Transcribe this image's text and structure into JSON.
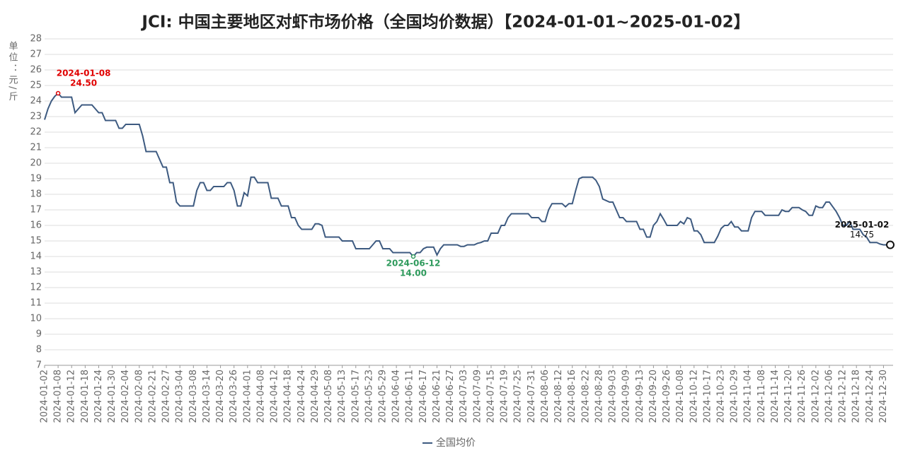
{
  "chart_data": {
    "type": "line",
    "title": "JCI: 中国主要地区对虾市场价格（全国均价数据）【2024-01-01~2025-01-02】",
    "y_label": "单位：元/斤",
    "ylim": [
      7,
      28
    ],
    "yticks": [
      7,
      8,
      9,
      10,
      11,
      12,
      13,
      14,
      15,
      16,
      17,
      18,
      19,
      20,
      21,
      22,
      23,
      24,
      25,
      26,
      27,
      28
    ],
    "grid": true,
    "legend": "bottom",
    "categories": [
      "2024-01-02",
      null,
      null,
      null,
      "2024-01-08",
      null,
      null,
      null,
      "2024-01-12",
      null,
      null,
      null,
      "2024-01-18",
      null,
      null,
      null,
      "2024-01-24",
      null,
      null,
      null,
      "2024-01-30",
      null,
      null,
      null,
      "2024-02-04",
      null,
      null,
      null,
      "2024-02-08",
      null,
      null,
      null,
      "2024-02-21",
      null,
      null,
      null,
      "2024-02-27",
      null,
      null,
      null,
      "2024-03-04",
      null,
      null,
      null,
      "2024-03-08",
      null,
      null,
      null,
      "2024-03-14",
      null,
      null,
      null,
      "2024-03-20",
      null,
      null,
      null,
      "2024-03-26",
      null,
      null,
      null,
      "2024-04-01",
      null,
      null,
      null,
      "2024-04-08",
      null,
      null,
      null,
      "2024-04-12",
      null,
      null,
      null,
      "2024-04-18",
      null,
      null,
      null,
      "2024-04-24",
      null,
      null,
      null,
      "2024-04-29",
      null,
      null,
      null,
      "2024-05-08",
      null,
      null,
      null,
      "2024-05-13",
      null,
      null,
      null,
      "2024-05-17",
      null,
      null,
      null,
      "2024-05-23",
      null,
      null,
      null,
      "2024-05-29",
      null,
      null,
      null,
      "2024-06-04",
      null,
      null,
      null,
      "2024-06-11",
      null,
      null,
      null,
      "2024-06-17",
      null,
      null,
      null,
      "2024-06-21",
      null,
      null,
      null,
      "2024-06-27",
      null,
      null,
      null,
      "2024-07-03",
      null,
      null,
      null,
      "2024-07-09",
      null,
      null,
      null,
      "2024-07-15",
      null,
      null,
      null,
      "2024-07-19",
      null,
      null,
      null,
      "2024-07-25",
      null,
      null,
      null,
      "2024-07-31",
      null,
      null,
      null,
      "2024-08-06",
      null,
      null,
      null,
      "2024-08-12",
      null,
      null,
      null,
      "2024-08-16",
      null,
      null,
      null,
      "2024-08-22",
      null,
      null,
      null,
      "2024-08-28",
      null,
      null,
      null,
      "2024-09-03",
      null,
      null,
      null,
      "2024-09-09",
      null,
      null,
      null,
      "2024-09-13",
      null,
      null,
      null,
      "2024-09-20",
      null,
      null,
      null,
      "2024-09-26",
      null,
      null,
      null,
      "2024-10-08",
      null,
      null,
      null,
      "2024-10-12",
      null,
      null,
      null,
      "2024-10-17",
      null,
      null,
      null,
      "2024-10-23",
      null,
      null,
      null,
      "2024-10-29",
      null,
      null,
      null,
      "2024-11-04",
      null,
      null,
      null,
      "2024-11-08",
      null,
      null,
      null,
      "2024-11-14",
      null,
      null,
      null,
      "2024-11-20",
      null,
      null,
      null,
      "2024-11-26",
      null,
      null,
      null,
      "2024-12-02",
      null,
      null,
      null,
      "2024-12-06",
      null,
      null,
      null,
      "2024-12-12",
      null,
      null,
      null,
      "2024-12-18",
      null,
      null,
      null,
      "2024-12-24",
      null,
      null,
      null,
      "2024-12-30",
      null,
      null
    ],
    "series": [
      {
        "name": "全国均价",
        "color": "#3d5a80",
        "values": [
          22.8,
          23.5,
          24.0,
          24.3,
          24.5,
          24.25,
          24.25,
          24.25,
          24.25,
          23.25,
          23.5,
          23.75,
          23.75,
          23.75,
          23.75,
          23.5,
          23.25,
          23.25,
          22.75,
          22.75,
          22.75,
          22.75,
          22.25,
          22.25,
          22.5,
          22.5,
          22.5,
          22.5,
          22.5,
          21.75,
          20.75,
          20.75,
          20.75,
          20.75,
          20.25,
          19.75,
          19.75,
          18.75,
          18.75,
          17.5,
          17.25,
          17.25,
          17.25,
          17.25,
          17.25,
          18.25,
          18.75,
          18.75,
          18.25,
          18.25,
          18.5,
          18.5,
          18.5,
          18.5,
          18.75,
          18.75,
          18.25,
          17.25,
          17.25,
          18.1,
          17.9,
          19.1,
          19.1,
          18.75,
          18.75,
          18.75,
          18.75,
          17.75,
          17.75,
          17.75,
          17.25,
          17.25,
          17.25,
          16.5,
          16.5,
          16.0,
          15.75,
          15.75,
          15.75,
          15.75,
          16.1,
          16.1,
          16.0,
          15.25,
          15.25,
          15.25,
          15.25,
          15.25,
          15.0,
          15.0,
          15.0,
          15.0,
          14.5,
          14.5,
          14.5,
          14.5,
          14.5,
          14.75,
          15.0,
          15.0,
          14.5,
          14.5,
          14.5,
          14.25,
          14.25,
          14.25,
          14.25,
          14.25,
          14.25,
          14.0,
          14.25,
          14.25,
          14.5,
          14.6,
          14.6,
          14.6,
          14.1,
          14.5,
          14.75,
          14.75,
          14.75,
          14.75,
          14.75,
          14.65,
          14.65,
          14.75,
          14.75,
          14.75,
          14.85,
          14.9,
          15.0,
          15.0,
          15.5,
          15.5,
          15.5,
          16.0,
          16.0,
          16.5,
          16.75,
          16.75,
          16.75,
          16.75,
          16.75,
          16.75,
          16.5,
          16.5,
          16.5,
          16.25,
          16.25,
          17.0,
          17.4,
          17.4,
          17.4,
          17.4,
          17.2,
          17.4,
          17.4,
          18.25,
          19.0,
          19.1,
          19.1,
          19.1,
          19.1,
          18.9,
          18.5,
          17.7,
          17.6,
          17.5,
          17.5,
          17.0,
          16.5,
          16.5,
          16.25,
          16.25,
          16.25,
          16.25,
          15.75,
          15.75,
          15.25,
          15.25,
          16.0,
          16.25,
          16.75,
          16.4,
          16.0,
          16.0,
          16.0,
          16.0,
          16.25,
          16.1,
          16.5,
          16.4,
          15.65,
          15.65,
          15.4,
          14.9,
          14.9,
          14.9,
          14.9,
          15.3,
          15.8,
          16.0,
          16.0,
          16.25,
          15.9,
          15.9,
          15.65,
          15.65,
          15.65,
          16.5,
          16.9,
          16.9,
          16.9,
          16.65,
          16.65,
          16.65,
          16.65,
          16.65,
          17.0,
          16.9,
          16.9,
          17.15,
          17.15,
          17.15,
          17.0,
          16.9,
          16.65,
          16.65,
          17.25,
          17.15,
          17.15,
          17.5,
          17.5,
          17.2,
          16.9,
          16.5,
          16.0,
          16.0,
          16.25,
          15.75,
          15.75,
          15.75,
          15.4,
          15.25,
          14.9,
          14.9,
          14.9,
          14.8,
          14.75,
          14.75,
          14.75
        ]
      }
    ],
    "annotations": [
      {
        "date": "2024-01-08",
        "value": 24.5,
        "value_label": "24.50",
        "color": "#e00000"
      },
      {
        "date": "2024-06-12",
        "value": 14.0,
        "value_label": "14.00",
        "color": "#2e9a5c"
      },
      {
        "date": "2025-01-02",
        "value": 14.75,
        "color": "#111111"
      }
    ]
  }
}
